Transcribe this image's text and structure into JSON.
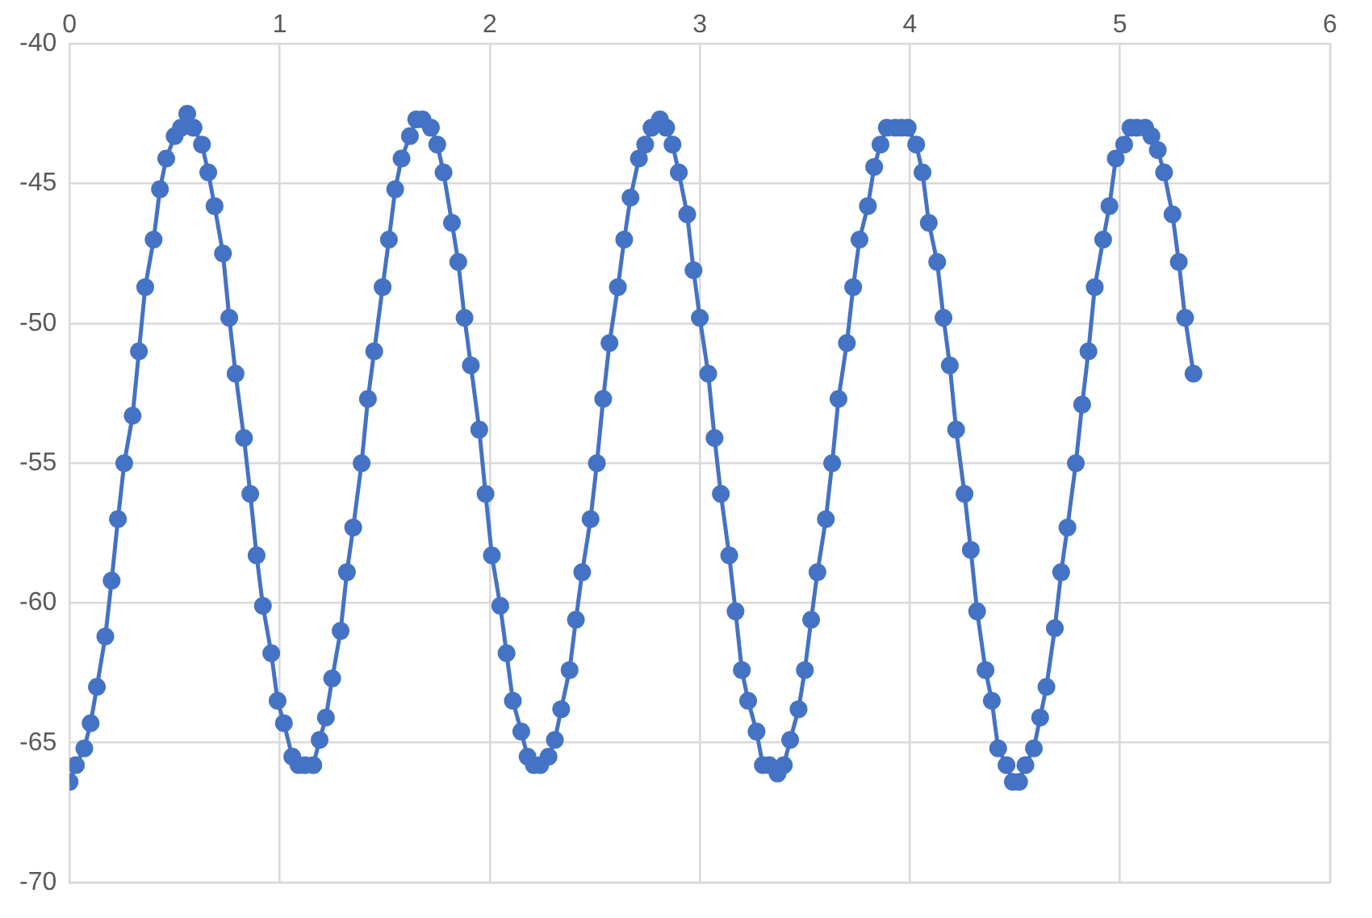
{
  "chart_data": {
    "type": "line",
    "marker": "circle",
    "line_style": "solid",
    "grid": true,
    "legend": false,
    "xlim": [
      0,
      6
    ],
    "xticks": [
      0,
      1,
      2,
      3,
      4,
      5,
      6
    ],
    "ylim": [
      -70,
      -40
    ],
    "yticks": [
      -70,
      -65,
      -60,
      -55,
      -50,
      -45,
      -40
    ],
    "x": [
      0,
      0.03,
      0.07,
      0.1,
      0.13,
      0.17,
      0.2,
      0.23,
      0.26,
      0.3,
      0.33,
      0.36,
      0.4,
      0.43,
      0.46,
      0.5,
      0.53,
      0.56,
      0.59,
      0.63,
      0.66,
      0.69,
      0.73,
      0.76,
      0.79,
      0.83,
      0.86,
      0.89,
      0.92,
      0.96,
      0.99,
      1.02,
      1.06,
      1.09,
      1.12,
      1.16,
      1.19,
      1.22,
      1.25,
      1.29,
      1.32,
      1.35,
      1.39,
      1.42,
      1.45,
      1.49,
      1.52,
      1.55,
      1.58,
      1.62,
      1.65,
      1.68,
      1.72,
      1.75,
      1.78,
      1.82,
      1.85,
      1.88,
      1.91,
      1.95,
      1.98,
      2.01,
      2.05,
      2.08,
      2.11,
      2.15,
      2.18,
      2.21,
      2.24,
      2.28,
      2.31,
      2.34,
      2.38,
      2.41,
      2.44,
      2.48,
      2.51,
      2.54,
      2.57,
      2.61,
      2.64,
      2.67,
      2.71,
      2.74,
      2.77,
      2.81,
      2.84,
      2.87,
      2.9,
      2.94,
      2.97,
      3.0,
      3.04,
      3.07,
      3.1,
      3.14,
      3.17,
      3.2,
      3.23,
      3.27,
      3.3,
      3.33,
      3.37,
      3.4,
      3.43,
      3.47,
      3.5,
      3.53,
      3.56,
      3.6,
      3.63,
      3.66,
      3.7,
      3.73,
      3.76,
      3.8,
      3.83,
      3.86,
      3.89,
      3.93,
      3.96,
      3.99,
      4.03,
      4.06,
      4.09,
      4.13,
      4.16,
      4.19,
      4.22,
      4.26,
      4.29,
      4.32,
      4.36,
      4.39,
      4.42,
      4.46,
      4.49,
      4.52,
      4.55,
      4.59,
      4.62,
      4.65,
      4.69,
      4.72,
      4.75,
      4.79,
      4.82,
      4.85,
      4.88,
      4.92,
      4.95,
      4.98,
      5.02,
      5.05,
      5.08,
      5.12,
      5.15,
      5.18,
      5.21,
      5.25,
      5.28,
      5.31,
      5.35
    ],
    "series": [
      {
        "color": "#4472c4",
        "values": [
          -66.4,
          -65.8,
          -65.2,
          -64.3,
          -63.0,
          -61.2,
          -59.2,
          -57.0,
          -55.0,
          -53.3,
          -51.0,
          -48.7,
          -47.0,
          -45.2,
          -44.1,
          -43.3,
          -43.0,
          -42.5,
          -43.0,
          -43.6,
          -44.6,
          -45.8,
          -47.5,
          -49.8,
          -51.8,
          -54.1,
          -56.1,
          -58.3,
          -60.1,
          -61.8,
          -63.5,
          -64.3,
          -65.5,
          -65.8,
          -65.8,
          -65.8,
          -64.9,
          -64.1,
          -62.7,
          -61.0,
          -58.9,
          -57.3,
          -55.0,
          -52.7,
          -51.0,
          -48.7,
          -47.0,
          -45.2,
          -44.1,
          -43.3,
          -42.7,
          -42.7,
          -43.0,
          -43.6,
          -44.6,
          -46.4,
          -47.8,
          -49.8,
          -51.5,
          -53.8,
          -56.1,
          -58.3,
          -60.1,
          -61.8,
          -63.5,
          -64.6,
          -65.5,
          -65.8,
          -65.8,
          -65.5,
          -64.9,
          -63.8,
          -62.4,
          -60.6,
          -58.9,
          -57.0,
          -55.0,
          -52.7,
          -50.7,
          -48.7,
          -47.0,
          -45.5,
          -44.1,
          -43.6,
          -43.0,
          -42.7,
          -43.0,
          -43.6,
          -44.6,
          -46.1,
          -48.1,
          -49.8,
          -51.8,
          -54.1,
          -56.1,
          -58.3,
          -60.3,
          -62.4,
          -63.5,
          -64.6,
          -65.8,
          -65.8,
          -66.1,
          -65.8,
          -64.9,
          -63.8,
          -62.4,
          -60.6,
          -58.9,
          -57.0,
          -55.0,
          -52.7,
          -50.7,
          -48.7,
          -47.0,
          -45.8,
          -44.4,
          -43.6,
          -43.0,
          -43.0,
          -43.0,
          -43.0,
          -43.6,
          -44.6,
          -46.4,
          -47.8,
          -49.8,
          -51.5,
          -53.8,
          -56.1,
          -58.1,
          -60.3,
          -62.4,
          -63.5,
          -65.2,
          -65.8,
          -66.4,
          -66.4,
          -65.8,
          -65.2,
          -64.1,
          -63.0,
          -60.9,
          -58.9,
          -57.3,
          -55.0,
          -52.9,
          -51.0,
          -48.7,
          -47.0,
          -45.8,
          -44.1,
          -43.6,
          -43.0,
          -43.0,
          -43.0,
          -43.3,
          -43.8,
          -44.6,
          -46.1,
          -47.8,
          -49.8,
          -51.8
        ]
      }
    ]
  }
}
